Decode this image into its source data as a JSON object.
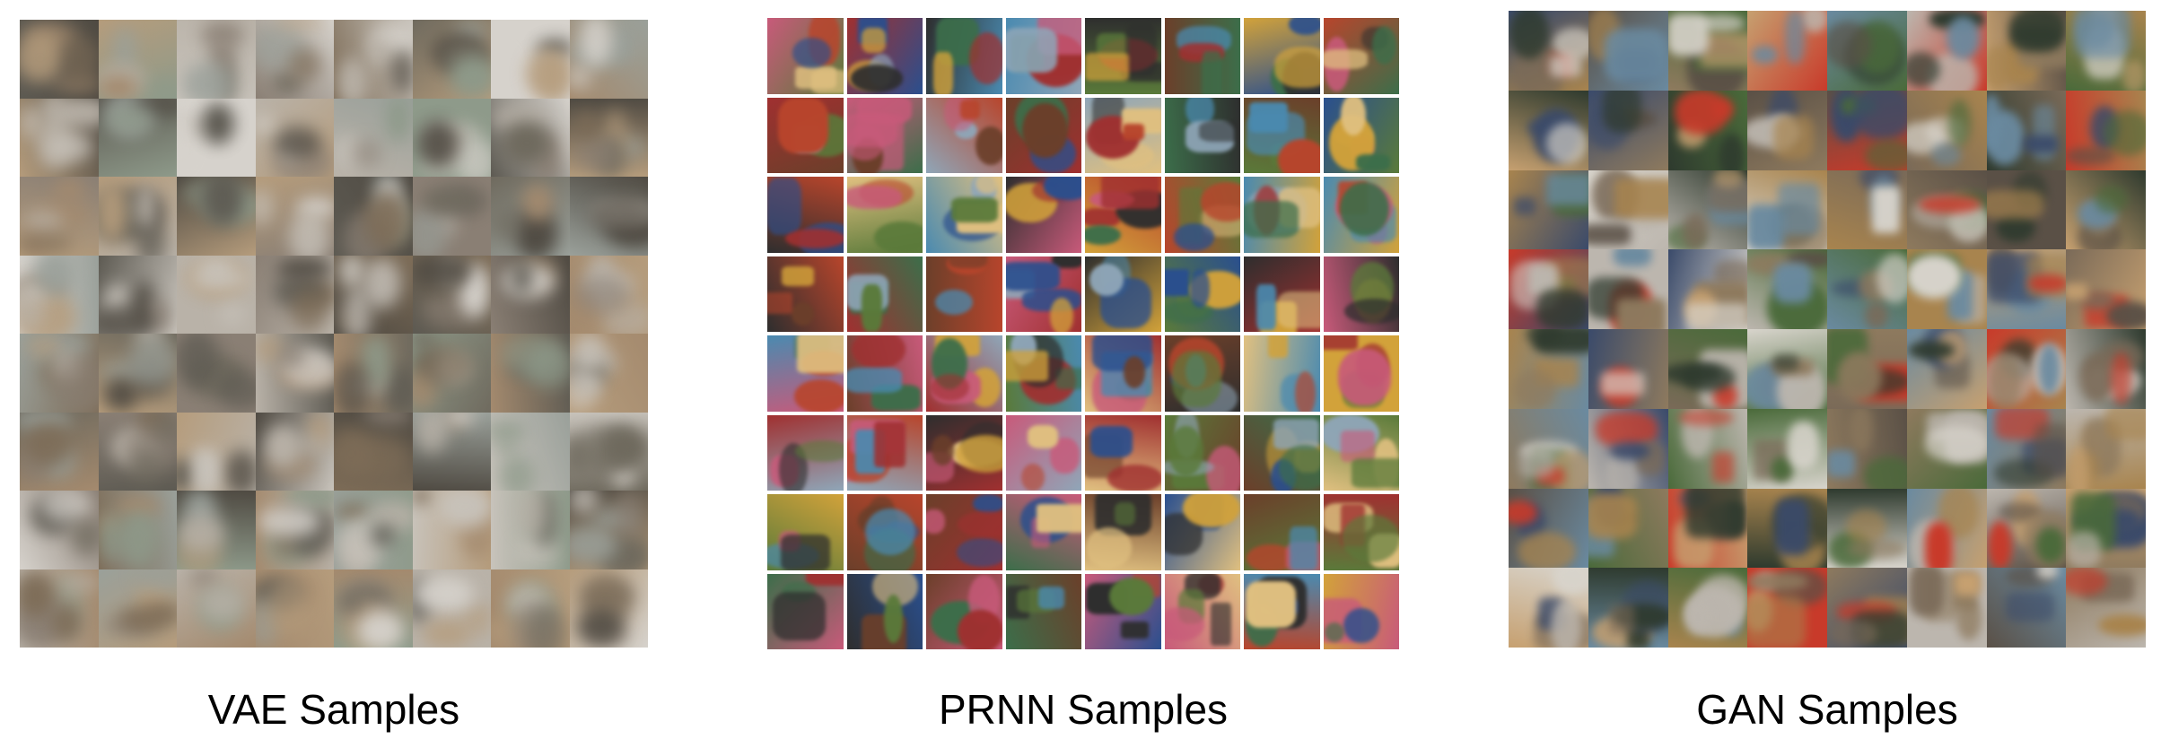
{
  "panels": [
    {
      "id": "vae",
      "caption": "VAE Samples",
      "rows": 8,
      "cols": 8,
      "style": "blurry",
      "palette": [
        "#8a7f74",
        "#b9b2a8",
        "#5d5a52",
        "#a48a6e",
        "#6f6a5e",
        "#c8c3bb",
        "#7d6c57",
        "#9aa09a",
        "#4f4a42",
        "#b59c7c",
        "#8e9a8a",
        "#d6d2cc"
      ]
    },
    {
      "id": "prnn",
      "caption": "PRNN Samples",
      "rows": 8,
      "cols": 8,
      "style": "sharp",
      "palette": [
        "#3c6e4a",
        "#b8452c",
        "#2a4f8e",
        "#d2a23a",
        "#6b3f2a",
        "#8fa6b8",
        "#c85a7a",
        "#2e2e2e",
        "#e0c080",
        "#5a7a3a",
        "#a03030",
        "#4a8ab0"
      ]
    },
    {
      "id": "gan",
      "caption": "GAN Samples",
      "rows": 8,
      "cols": 8,
      "style": "mixed",
      "palette": [
        "#7a6a58",
        "#c83a2a",
        "#4a6a3a",
        "#bcb6ae",
        "#3a4a6a",
        "#a8844e",
        "#d8d4cc",
        "#5a5046",
        "#8e7a5e",
        "#2e3a2e",
        "#c6a070",
        "#6a8aa0"
      ]
    }
  ]
}
